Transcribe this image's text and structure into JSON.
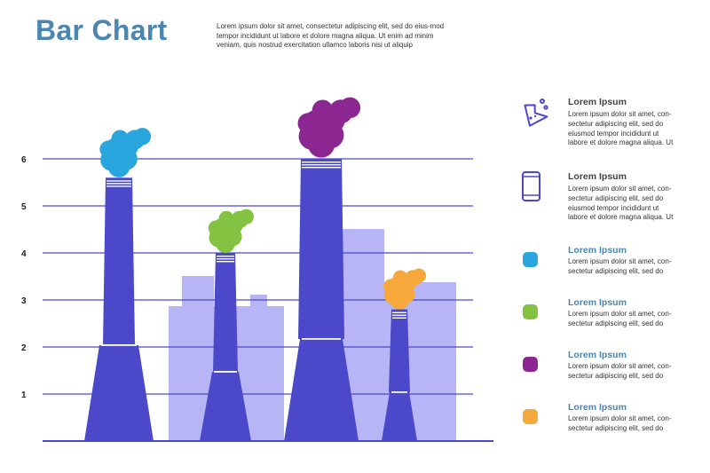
{
  "header": {
    "title": "Bar Chart",
    "intro": "Lorem ipsum dolor sit amet, consectetur adipiscing elit, sed do eius-mod tempor incididunt ut labore et dolore magna aliqua. Ut enim ad minim veniam, quis nostrud exercitation ullamco laboris nisi ut aliquip"
  },
  "colors": {
    "chimney": "#4b49c9",
    "building": "#b7b5f5",
    "axis": "#4b49c9",
    "title": "#4a86b0",
    "heading_accent": "#4a86b0"
  },
  "chart_data": {
    "type": "bar",
    "title": "",
    "xlabel": "",
    "ylabel": "",
    "ylim": [
      0,
      6
    ],
    "yticks": [
      "1",
      "2",
      "3",
      "4",
      "5",
      "6"
    ],
    "grid": true,
    "categories": [
      "",
      "",
      "",
      ""
    ],
    "series": [
      {
        "values": [
          5.6,
          4.0,
          6.0,
          2.8
        ]
      }
    ],
    "bar_colors": [
      "#29a6dd",
      "#83c341",
      "#8c2690",
      "#f6a93a"
    ]
  },
  "legend": {
    "items": [
      {
        "icon": "lab-flask-icon",
        "heading": "Lorem Ipsum",
        "text": "Lorem ipsum dolor sit amet, con-sectetur adipiscing elit, sed do eiusmod tempor incididunt ut labore et dolore magna aliqua. Ut"
      },
      {
        "icon": "smartphone-icon",
        "heading": "Lorem Ipsum",
        "text": "Lorem ipsum dolor sit amet, con-sectetur adipiscing elit, sed do eiusmod tempor incididunt ut labore et dolore magna aliqua. Ut"
      },
      {
        "color": "#29a6dd",
        "heading": "Lorem Ipsum",
        "text": "Lorem ipsum dolor sit amet, con-sectetur adipiscing elit, sed do"
      },
      {
        "color": "#83c341",
        "heading": "Lorem Ipsum",
        "text": "Lorem ipsum dolor sit amet, con-sectetur adipiscing elit, sed do"
      },
      {
        "color": "#8c2690",
        "heading": "Lorem Ipsum",
        "text": "Lorem ipsum dolor sit amet, con-sectetur adipiscing elit, sed do"
      },
      {
        "color": "#f6a93a",
        "heading": "Lorem Ipsum",
        "text": "Lorem ipsum dolor sit amet, con-sectetur adipiscing elit, sed do"
      }
    ]
  }
}
